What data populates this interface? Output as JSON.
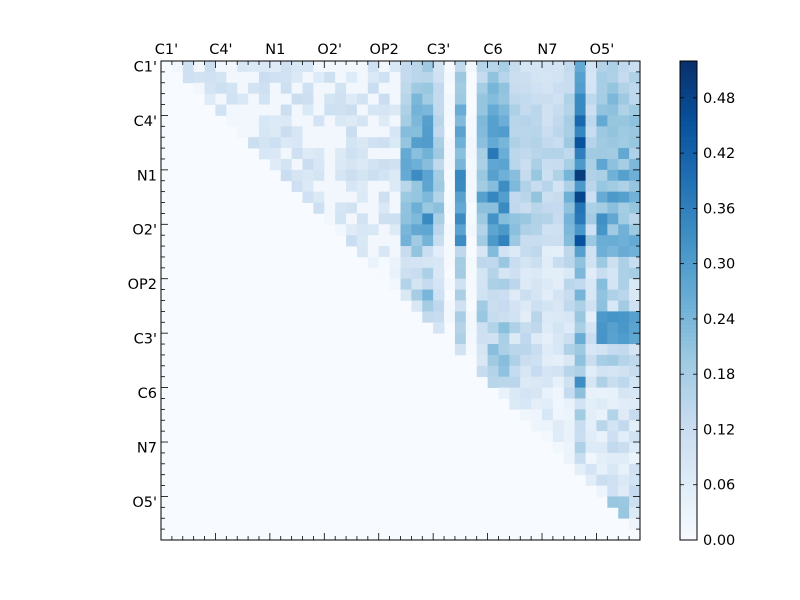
{
  "chart_data": {
    "type": "heatmap",
    "title": "",
    "xlabel": "",
    "ylabel": "",
    "grid": false,
    "x_tick_labels": [
      "C1'",
      "C4'",
      "N1",
      "O2'",
      "OP2",
      "C3'",
      "C6",
      "N7",
      "O5'"
    ],
    "y_tick_labels": [
      "C1'",
      "C4'",
      "N1",
      "O2'",
      "OP2",
      "C3'",
      "C6",
      "N7",
      "O5'"
    ],
    "label_every": 5,
    "size": 44,
    "colorbar": {
      "ticks": [
        0.0,
        0.06,
        0.12,
        0.18,
        0.24,
        0.3,
        0.36,
        0.42,
        0.48
      ],
      "tick_labels": [
        "0.00",
        "0.06",
        "0.12",
        "0.18",
        "0.24",
        "0.30",
        "0.36",
        "0.42",
        "0.48"
      ],
      "min": 0.0,
      "max": 0.52,
      "colormap": "Blues"
    },
    "column_peaks": [
      {
        "col": 22,
        "value": 0.28
      },
      {
        "col": 23,
        "value": 0.34
      },
      {
        "col": 24,
        "value": 0.36
      },
      {
        "col": 25,
        "value": 0.22
      },
      {
        "col": 27,
        "value": 0.35
      },
      {
        "col": 29,
        "value": 0.3
      },
      {
        "col": 30,
        "value": 0.4
      },
      {
        "col": 31,
        "value": 0.36
      },
      {
        "col": 32,
        "value": 0.24
      },
      {
        "col": 33,
        "value": 0.22
      },
      {
        "col": 34,
        "value": 0.22
      },
      {
        "col": 35,
        "value": 0.18
      },
      {
        "col": 36,
        "value": 0.18
      },
      {
        "col": 37,
        "value": 0.26
      },
      {
        "col": 38,
        "value": 0.5
      },
      {
        "col": 39,
        "value": 0.2
      },
      {
        "col": 40,
        "value": 0.33
      },
      {
        "col": 41,
        "value": 0.33
      },
      {
        "col": 42,
        "value": 0.3
      },
      {
        "col": 43,
        "value": 0.28
      }
    ],
    "row_blocks": [
      {
        "rows": [
          23,
          25
        ],
        "cols": [
          40,
          43
        ],
        "value": 0.32
      },
      {
        "rows": [
          16,
          17
        ],
        "cols": [
          40,
          43
        ],
        "value": 0.27
      },
      {
        "rows": [
          6,
          7
        ],
        "cols": [
          40,
          43
        ],
        "value": 0.22
      },
      {
        "rows": [
          40,
          41
        ],
        "cols": [
          40,
          42
        ],
        "value": 0.22
      }
    ]
  }
}
